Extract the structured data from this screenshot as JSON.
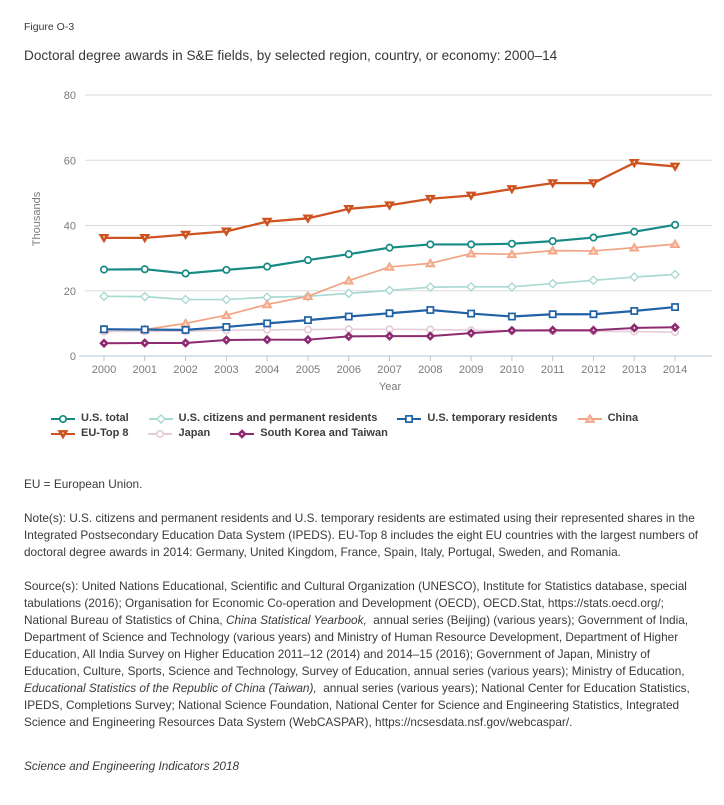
{
  "figure": {
    "label": "Figure O-3",
    "title": "Doctoral degree awards in S&E fields, by selected region, country, or economy: 2000–14"
  },
  "chart_data": {
    "type": "line",
    "title": "Doctoral degree awards in S&E fields, by selected region, country, or economy: 2000–14",
    "x": [
      2000,
      2001,
      2002,
      2003,
      2004,
      2005,
      2006,
      2007,
      2008,
      2009,
      2010,
      2011,
      2012,
      2013,
      2014
    ],
    "xlabel": "Year",
    "ylabel": "Thousands",
    "ylim": [
      0,
      80
    ],
    "yticks": [
      0,
      20,
      40,
      60,
      80
    ],
    "grid": "horizontal",
    "grid_color": "#dadada",
    "axis_color": "#b4c6d9",
    "tick_color": "#7b7b7b",
    "legend_position": "bottom",
    "units": "thousands",
    "series": [
      {
        "name": "U.S. total",
        "color": "#178a84",
        "marker": "circle-open",
        "width": 2.2,
        "values": [
          26.5,
          26.6,
          25.3,
          26.4,
          27.4,
          29.4,
          31.2,
          33.2,
          34.2,
          34.2,
          34.4,
          35.2,
          36.3,
          38.1,
          40.2
        ]
      },
      {
        "name": "U.S. citizens and permanent residents",
        "color": "#a9dad2",
        "marker": "diamond-open",
        "width": 1.7,
        "values": [
          18.3,
          18.2,
          17.3,
          17.3,
          18.0,
          18.3,
          19.2,
          20.1,
          21.1,
          21.2,
          21.2,
          22.2,
          23.2,
          24.2,
          25.0
        ]
      },
      {
        "name": "U.S. temporary residents",
        "color": "#2161a6",
        "marker": "square-open",
        "width": 2.2,
        "values": [
          8.2,
          8.1,
          8.0,
          8.9,
          10.0,
          11.0,
          12.1,
          13.1,
          14.1,
          13.0,
          12.1,
          12.8,
          12.8,
          13.8,
          15.0
        ]
      },
      {
        "name": "China",
        "color": "#f2a383",
        "marker": "triangle-up",
        "marker_fill": "#f5b69c",
        "width": 1.7,
        "values": [
          8.1,
          8.1,
          10.0,
          12.5,
          15.8,
          18.3,
          23.1,
          27.3,
          28.4,
          31.4,
          31.2,
          32.3,
          32.2,
          33.2,
          34.3
        ]
      },
      {
        "name": "EU-Top 8",
        "color": "#cd5321",
        "marker": "triangle-down",
        "marker_fill": "#cd5321",
        "width": 2.3,
        "values": [
          36.2,
          36.2,
          37.2,
          38.2,
          41.2,
          42.2,
          45.1,
          46.2,
          48.2,
          49.2,
          51.2,
          53.0,
          53.0,
          59.2,
          58.1
        ]
      },
      {
        "name": "Japan",
        "color": "#e5ccd8",
        "marker": "circle-open",
        "width": 1.6,
        "values": [
          7.5,
          7.6,
          7.6,
          7.9,
          8.0,
          8.1,
          8.2,
          8.2,
          8.1,
          7.9,
          7.7,
          7.6,
          7.6,
          7.5,
          7.3
        ]
      },
      {
        "name": "South Korea and Taiwan",
        "color": "#8e2a70",
        "marker": "diamond-filled",
        "marker_fill": "#8e2a70",
        "width": 2.0,
        "values": [
          3.9,
          4.0,
          4.0,
          4.9,
          5.0,
          5.0,
          6.0,
          6.1,
          6.1,
          7.0,
          7.8,
          7.9,
          7.9,
          8.6,
          8.8
        ]
      }
    ],
    "draw_order": [
      1,
      5,
      3,
      2,
      6,
      0,
      4
    ]
  },
  "legend_rows": [
    [
      0,
      1,
      2,
      3
    ],
    [
      4,
      5,
      6
    ]
  ],
  "notes": {
    "eu_note": "EU = European Union.",
    "note": "Note(s): U.S. citizens and permanent residents and U.S. temporary residents are estimated using their represented shares in the Integrated Postsecondary Education Data System (IPEDS). EU-Top 8 includes the eight EU countries with the largest numbers of doctoral degree awards in 2014: Germany, United Kingdom, France, Spain, Italy, Portugal, Sweden, and Romania.",
    "source_segments": [
      {
        "text": "Source(s): United Nations Educational, Scientific and Cultural Organization (UNESCO), Institute for Statistics database, special tabulations (2016); Organisation for Economic Co-operation and Development (OECD), OECD.Stat, https://stats.oecd.org/; National Bureau of Statistics of China, ",
        "italic": false
      },
      {
        "text": "China Statistical Yearbook,",
        "italic": true
      },
      {
        "text": "  annual series (Beijing) (various years); Government of India, Department of Science and Technology (various years) and Ministry of Human Resource Development, Department of Higher Education, All India Survey on Higher Education 2011–12 (2014) and 2014–15 (2016); Government of Japan, Ministry of Education, Culture, Sports, Science and Technology, Survey of Education, annual series (various years); Ministry of Education, ",
        "italic": false
      },
      {
        "text": "Educational Statistics of the Republic of China (Taiwan),",
        "italic": true
      },
      {
        "text": "  annual series (various years); National Center for Education Statistics, IPEDS, Completions Survey; National Science Foundation, National Center for Science and Engineering Statistics, Integrated Science and Engineering Resources Data System (WebCASPAR), https://ncsesdata.nsf.gov/webcaspar/.",
        "italic": false
      }
    ],
    "footer": "Science and Engineering Indicators 2018"
  }
}
